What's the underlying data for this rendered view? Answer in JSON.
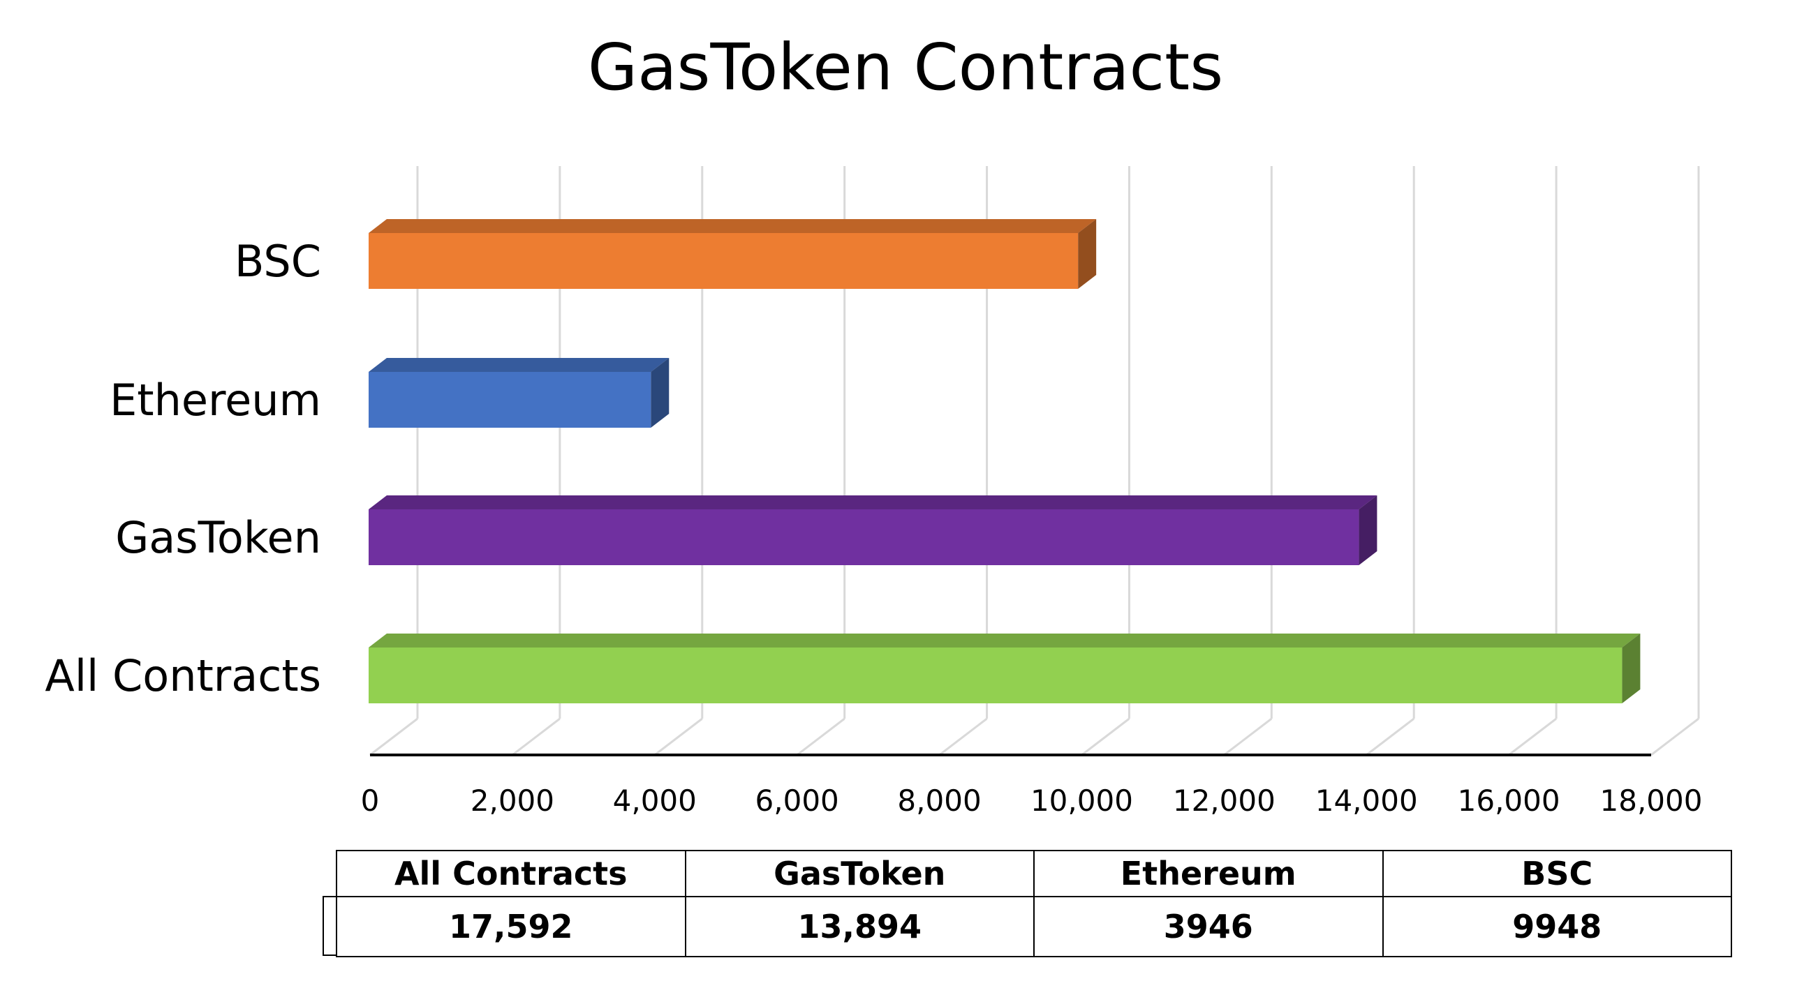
{
  "chart_data": {
    "type": "bar",
    "orientation": "horizontal",
    "style": "3d",
    "title": "GasToken Contracts",
    "categories": [
      "All Contracts",
      "GasToken",
      "Ethereum",
      "BSC"
    ],
    "values": [
      17592,
      13894,
      3946,
      9948
    ],
    "bar_colors": [
      "#92d050",
      "#7030a0",
      "#4472c4",
      "#ed7d31"
    ],
    "xlim": [
      0,
      18000
    ],
    "x_ticks": [
      0,
      2000,
      4000,
      6000,
      8000,
      10000,
      12000,
      14000,
      16000,
      18000
    ],
    "x_tick_labels": [
      "0",
      "2,000",
      "4,000",
      "6,000",
      "8,000",
      "10,000",
      "12,000",
      "14,000",
      "16,000",
      "18,000"
    ],
    "grid": true,
    "legend": "none",
    "table": {
      "headers": [
        "All Contracts",
        "GasToken",
        "Ethereum",
        "BSC"
      ],
      "values": [
        "17,592",
        "13,894",
        "3946",
        "9948"
      ]
    }
  }
}
